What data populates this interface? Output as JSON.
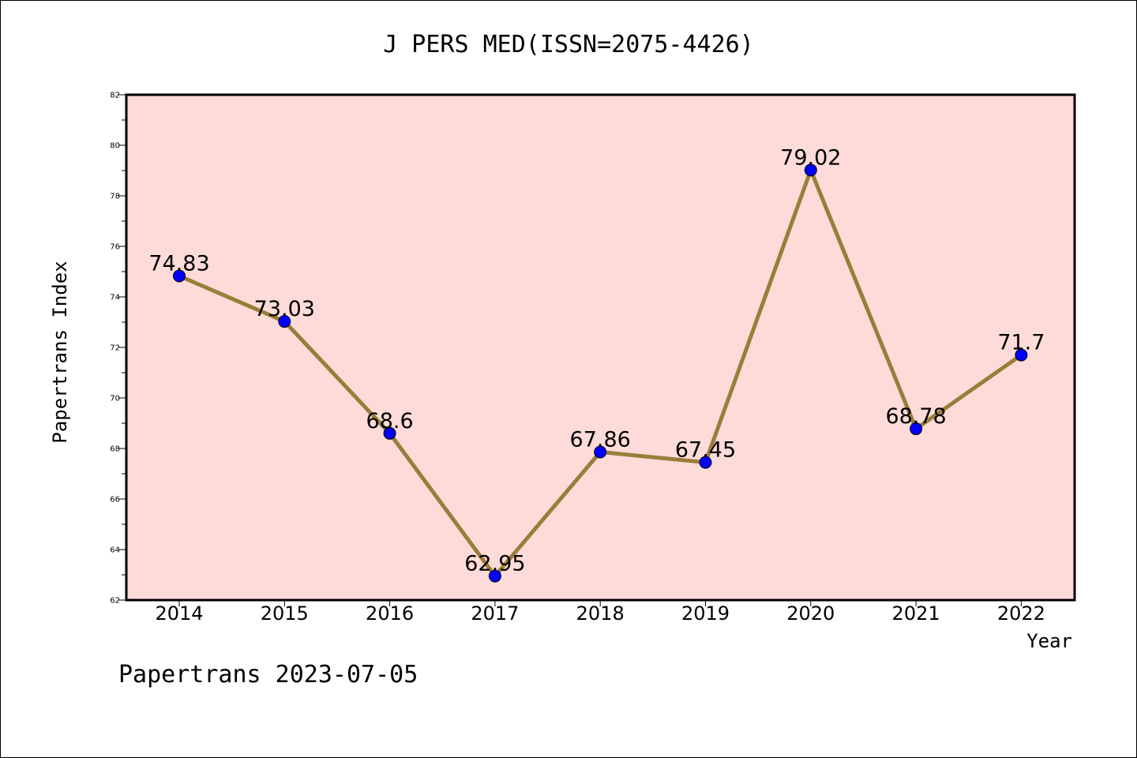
{
  "chart_data": {
    "type": "line",
    "title": "J PERS MED(ISSN=2075-4426)",
    "xlabel": "Year",
    "ylabel": "Papertrans Index",
    "x": [
      "2014",
      "2015",
      "2016",
      "2017",
      "2018",
      "2019",
      "2020",
      "2021",
      "2022"
    ],
    "series": [
      {
        "values": [
          74.83,
          73.03,
          68.6,
          62.95,
          67.86,
          67.45,
          79.02,
          68.78,
          71.7
        ],
        "labels": [
          "74.83",
          "73.03",
          "68.6",
          "62.95",
          "67.86",
          "67.45",
          "79.02",
          "68.78",
          "71.7"
        ],
        "line_color": "#9a7d3a",
        "marker_color": "#0000ff"
      }
    ],
    "ylim": [
      62,
      82
    ],
    "yticks": [
      "62",
      "64",
      "66",
      "68",
      "70",
      "72",
      "74",
      "76",
      "78",
      "80",
      "82"
    ],
    "plot_background": "#fddbd8",
    "grid": false,
    "legend": "none"
  },
  "footer": {
    "note": "Papertrans 2023-07-05"
  }
}
